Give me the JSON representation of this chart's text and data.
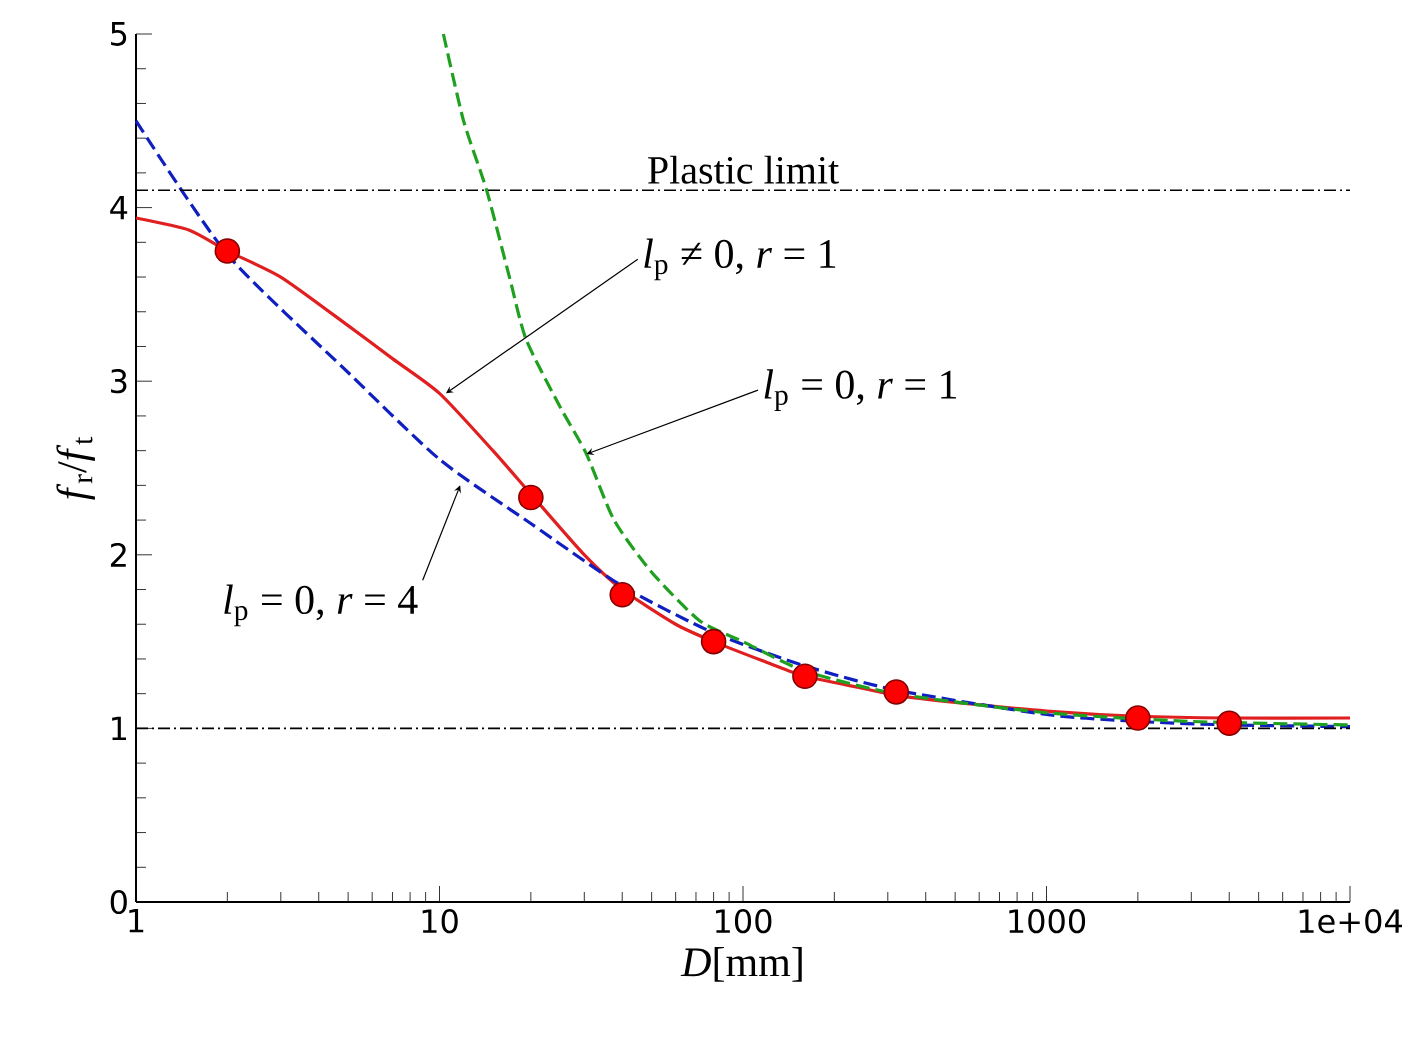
{
  "chart_data": {
    "type": "line",
    "xlabel": "*D*[mm]",
    "ylabel": "*f*$_{r}$/*f*$_{t}$",
    "log": "x",
    "xlim": [
      1,
      10000
    ],
    "ylim": [
      0,
      5
    ],
    "xticks": [
      1,
      10,
      100,
      1000,
      {
        "value": 10000,
        "label": "1e+04"
      }
    ],
    "yticks": [
      0,
      1,
      2,
      3,
      4,
      5
    ],
    "series": [
      {
        "color": "#e02020",
        "line_style": "solid",
        "marker": "none",
        "x": [
          1,
          1.5,
          2,
          3,
          5,
          7,
          10,
          15,
          20,
          30,
          40,
          60,
          80,
          120,
          160,
          250,
          320,
          500,
          1000,
          2000,
          4000,
          10000
        ],
        "values": [
          3.94,
          3.87,
          3.75,
          3.6,
          3.32,
          3.13,
          2.93,
          2.6,
          2.35,
          2.0,
          1.8,
          1.6,
          1.5,
          1.38,
          1.3,
          1.23,
          1.19,
          1.15,
          1.1,
          1.07,
          1.06,
          1.06
        ]
      },
      {
        "color": "#1020c0",
        "line_style": "dashed",
        "marker": "none",
        "x": [
          1,
          2,
          5,
          10,
          20,
          40,
          80,
          160,
          320,
          1000,
          2000,
          4000,
          10000
        ],
        "values": [
          4.5,
          3.73,
          3.05,
          2.55,
          2.18,
          1.82,
          1.55,
          1.36,
          1.22,
          1.08,
          1.04,
          1.02,
          1.01
        ]
      },
      {
        "color": "#20a020",
        "line_style": "dashed",
        "marker": "none",
        "x": [
          10.3,
          12,
          14.3,
          17,
          19.3,
          25,
          30.5,
          37.6,
          50,
          72,
          100,
          160,
          320,
          1000,
          3000,
          10000
        ],
        "values": [
          5,
          4.5,
          4.1,
          3.6,
          3.24,
          2.85,
          2.58,
          2.2,
          1.9,
          1.62,
          1.5,
          1.33,
          1.2,
          1.09,
          1.04,
          1.02
        ]
      },
      {
        "type": "scatter",
        "color": "#ff0000",
        "marker": "circle",
        "x": [
          2,
          20,
          40,
          80,
          160,
          320,
          2000,
          4000
        ],
        "values": [
          3.75,
          2.33,
          1.77,
          1.5,
          1.3,
          1.21,
          1.06,
          1.03
        ]
      }
    ],
    "ref_lines": [
      {
        "axis": "y",
        "value": 4.1,
        "label": "Plastic limit"
      },
      {
        "axis": "y",
        "value": 1
      }
    ],
    "annotations": [
      {
        "text": "*l*$_{p}$ ≠ 0, *r* = 1",
        "x": 10.5,
        "y": 2.93
      },
      {
        "text": "*l*$_{p}$ = 0, *r* = 1",
        "x": 30.5,
        "y": 2.58
      },
      {
        "text": "*l*$_{p}$ = 0, *r* = 4",
        "x": 11.7,
        "y": 2.4
      }
    ]
  }
}
